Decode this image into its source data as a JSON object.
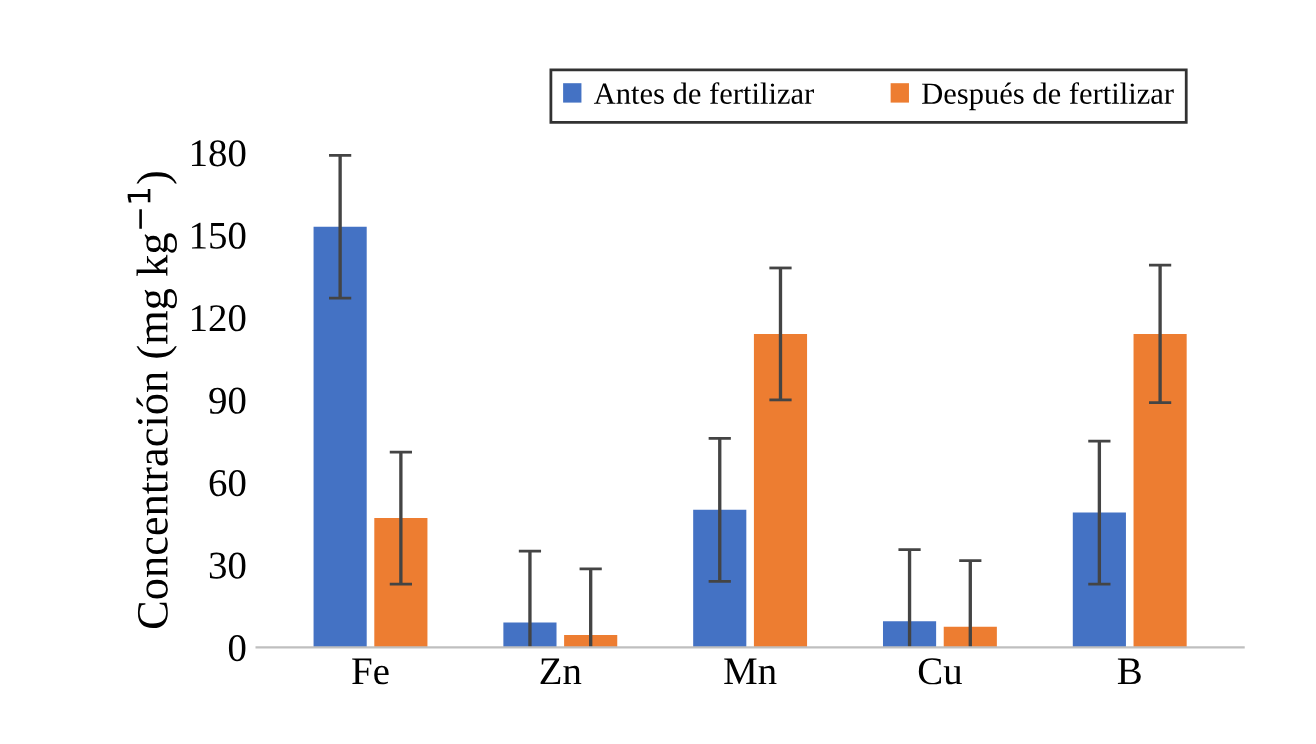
{
  "chart_data": {
    "type": "bar",
    "ylabel": "Concentración (mg kg$^{−1}$)",
    "categories": [
      "Fe",
      "Zn",
      "Mn",
      "Cu",
      "B"
    ],
    "series": [
      {
        "name": "Antes de fertilizar",
        "color": "#4472c4",
        "values": [
          153,
          9,
          50,
          9.5,
          49
        ],
        "errors": [
          26,
          26,
          26,
          26,
          26
        ]
      },
      {
        "name": "Después de fertilizar",
        "color": "#ed7d31",
        "values": [
          47,
          4.5,
          114,
          7.5,
          114
        ],
        "errors": [
          24,
          24,
          24,
          24,
          25
        ]
      }
    ],
    "ylim": [
      0,
      180
    ],
    "yticks": [
      0,
      30,
      60,
      90,
      120,
      150,
      180
    ],
    "grid": false,
    "legend": "top"
  }
}
